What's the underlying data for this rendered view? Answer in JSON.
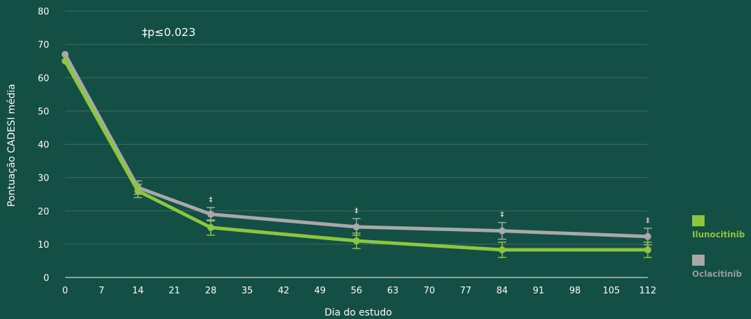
{
  "chart_data": {
    "type": "line",
    "title": "",
    "xlabel": "Dia do estudo",
    "ylabel": "Pontuação CADESI média",
    "annotation": "‡p≤0.023",
    "significance_marker": "‡",
    "significant_days": [
      28,
      56,
      84,
      112
    ],
    "xlim": [
      0,
      112
    ],
    "ylim": [
      0,
      80
    ],
    "x_ticks": [
      0,
      7,
      14,
      21,
      28,
      35,
      42,
      49,
      56,
      63,
      70,
      77,
      84,
      91,
      98,
      105,
      112
    ],
    "y_ticks": [
      0,
      10,
      20,
      30,
      40,
      50,
      60,
      70,
      80
    ],
    "grid": true,
    "legend_position": "right",
    "series": [
      {
        "name": "Oclacitinib",
        "color": "#a8a8a8",
        "label_color": "#9a9a9a",
        "x": [
          0,
          14,
          28,
          56,
          84,
          112
        ],
        "y": [
          67,
          27,
          19,
          15.2,
          14,
          12.3
        ],
        "err": [
          0,
          2,
          2,
          2.5,
          2.5,
          2.5
        ]
      },
      {
        "name": "Ilunocitinib",
        "color": "#8cc63f",
        "label_color": "#8cc63f",
        "x": [
          0,
          14,
          28,
          56,
          84,
          112
        ],
        "y": [
          65,
          26,
          15,
          11,
          8.3,
          8.3
        ],
        "err": [
          0,
          2,
          2.3,
          2.3,
          2.3,
          2.3
        ]
      }
    ]
  }
}
